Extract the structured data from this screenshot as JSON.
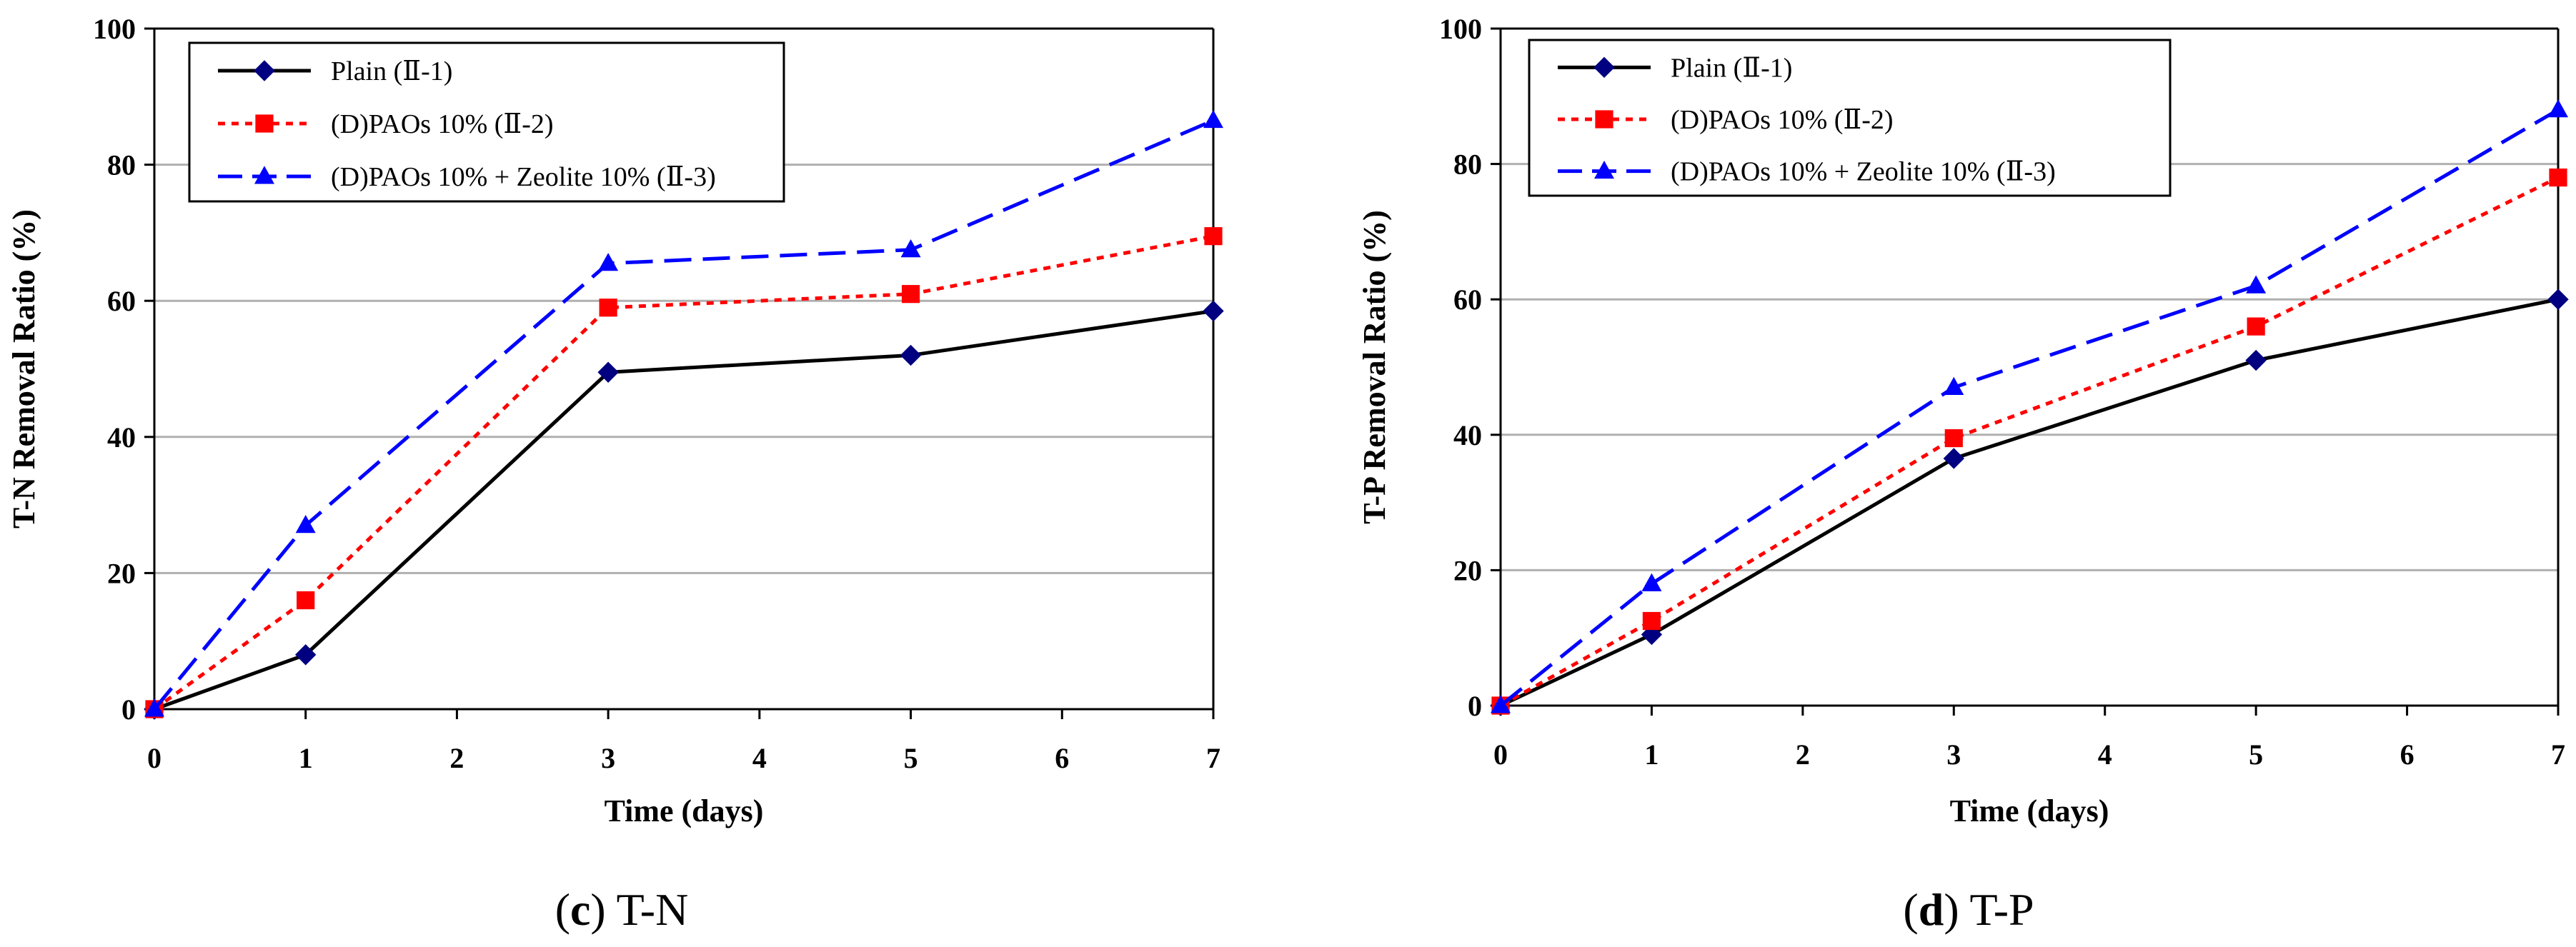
{
  "chart_data": [
    {
      "type": "line",
      "panel_letter": "c",
      "panel_title": "T-N",
      "xlabel": "Time (days)",
      "ylabel": "T-N Removal Ratio (%)",
      "xlim": [
        0,
        7
      ],
      "ylim": [
        0,
        100
      ],
      "xticks": [
        "0",
        "1",
        "2",
        "3",
        "4",
        "5",
        "6",
        "7"
      ],
      "yticks": [
        "0",
        "20",
        "40",
        "60",
        "80",
        "100"
      ],
      "grid": "horizontal",
      "legend_position": "top-left",
      "series": [
        {
          "name": "Plain (Ⅱ-1)",
          "color": "#000000",
          "marker_color": "#000080",
          "marker": "diamond",
          "line": "solid",
          "x": [
            0,
            1,
            3,
            5,
            7
          ],
          "values": [
            0,
            8,
            49.5,
            52,
            58.5
          ]
        },
        {
          "name": "(D)PAOs 10% (Ⅱ-2)",
          "color": "#ff0000",
          "marker_color": "#ff0000",
          "marker": "square",
          "line": "dotted",
          "x": [
            0,
            1,
            3,
            5,
            7
          ],
          "values": [
            0,
            16,
            59,
            61,
            69.5
          ]
        },
        {
          "name": "(D)PAOs 10% + Zeolite 10% (Ⅱ-3)",
          "color": "#0000ff",
          "marker_color": "#0000ff",
          "marker": "triangle",
          "line": "dashed",
          "x": [
            0,
            1,
            3,
            5,
            7
          ],
          "values": [
            0,
            27,
            65.5,
            67.5,
            86.5
          ]
        }
      ]
    },
    {
      "type": "line",
      "panel_letter": "d",
      "panel_title": "T-P",
      "xlabel": "Time (days)",
      "ylabel": "T-P  Removal Ratio (%)",
      "xlim": [
        0,
        7
      ],
      "ylim": [
        0,
        100
      ],
      "xticks": [
        "0",
        "1",
        "2",
        "3",
        "4",
        "5",
        "6",
        "7"
      ],
      "yticks": [
        "0",
        "20",
        "40",
        "60",
        "80",
        "100"
      ],
      "grid": "horizontal",
      "legend_position": "top-left",
      "series": [
        {
          "name": "Plain (Ⅱ-1)",
          "color": "#000000",
          "marker_color": "#000080",
          "marker": "diamond",
          "line": "solid",
          "x": [
            0,
            1,
            3,
            5,
            7
          ],
          "values": [
            0,
            10.5,
            36.5,
            51,
            60
          ]
        },
        {
          "name": "(D)PAOs 10% (Ⅱ-2)",
          "color": "#ff0000",
          "marker_color": "#ff0000",
          "marker": "square",
          "line": "dotted",
          "x": [
            0,
            1,
            3,
            5,
            7
          ],
          "values": [
            0,
            12.5,
            39.5,
            56,
            78
          ]
        },
        {
          "name": "(D)PAOs 10% + Zeolite 10% (Ⅱ-3)",
          "color": "#0000ff",
          "marker_color": "#0000ff",
          "marker": "triangle",
          "line": "dashed",
          "x": [
            0,
            1,
            3,
            5,
            7
          ],
          "values": [
            0,
            18,
            47,
            62,
            88
          ]
        }
      ]
    }
  ]
}
